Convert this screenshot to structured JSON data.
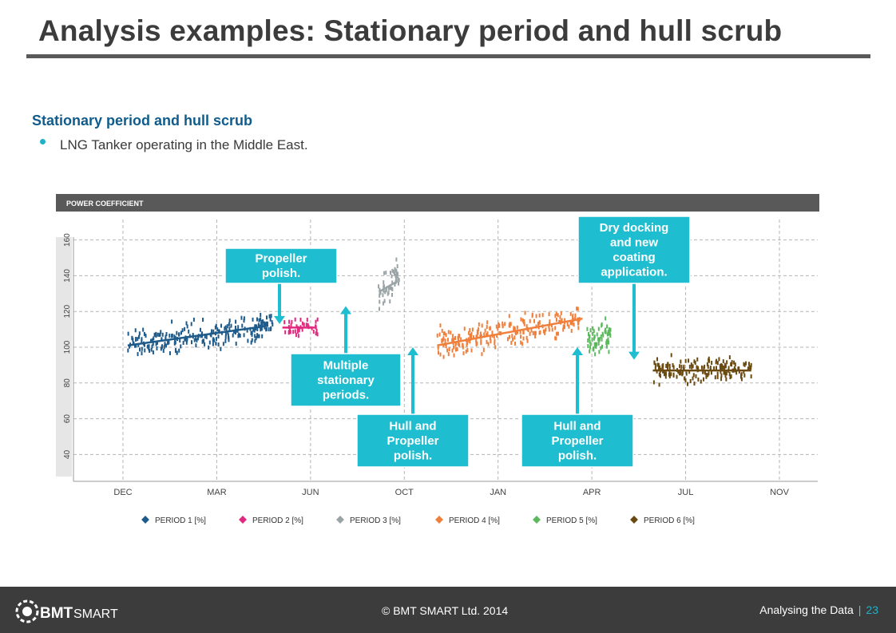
{
  "page": {
    "title": "Analysis examples: Stationary period and hull scrub",
    "section_heading": "Stationary period and hull scrub",
    "bullet": "LNG Tanker operating in the Middle East."
  },
  "footer": {
    "logo_text_bold": "BMT",
    "logo_text": "SMART",
    "copyright": "© BMT SMART Ltd. 2014",
    "section": "Analysing the Data",
    "page_number": "23"
  },
  "colors": {
    "period1": "#1f5b8a",
    "period2": "#e0287e",
    "period3": "#9aa3a6",
    "period4": "#f07f3c",
    "period5": "#5cb85c",
    "period6": "#6b4a12",
    "callout": "#1ebdcf",
    "header_bar": "#595959"
  },
  "chart_data": {
    "type": "scatter",
    "title": "POWER COEFFICIENT",
    "x_tick_labels": [
      "DEC",
      "MAR",
      "JUN",
      "OCT",
      "JAN",
      "APR",
      "JUL",
      "NOV"
    ],
    "xlim": [
      0,
      7
    ],
    "y_ticks": [
      40,
      60,
      80,
      100,
      120,
      140,
      160
    ],
    "ylim": [
      25,
      175
    ],
    "grid": true,
    "legend_position": "bottom",
    "series": [
      {
        "name": "PERIOD 1 [%]",
        "color": "#1f5b8a",
        "x_range": [
          0.05,
          1.6
        ],
        "y_center": 106,
        "spread": 6,
        "trend": [
          [
            0.05,
            101
          ],
          [
            1.55,
            112
          ]
        ],
        "n": 240
      },
      {
        "name": "PERIOD 2 [%]",
        "color": "#e0287e",
        "x_range": [
          1.68,
          2.08
        ],
        "y_center": 111,
        "spread": 3,
        "trend": [
          [
            1.7,
            111
          ],
          [
            2.05,
            111
          ]
        ],
        "n": 40
      },
      {
        "name": "PERIOD 3 [%]",
        "color": "#9aa3a6",
        "x_range": [
          2.72,
          2.95
        ],
        "y_center": 133,
        "spread": 8,
        "trend": [
          [
            2.73,
            131
          ],
          [
            2.93,
            137
          ]
        ],
        "n": 50
      },
      {
        "name": "PERIOD 4 [%]",
        "color": "#f07f3c",
        "x_range": [
          3.35,
          4.9
        ],
        "y_center": 106,
        "spread": 6,
        "trend": [
          [
            3.35,
            101
          ],
          [
            4.9,
            116
          ]
        ],
        "n": 230
      },
      {
        "name": "PERIOD 5 [%]",
        "color": "#5cb85c",
        "x_range": [
          4.95,
          5.2
        ],
        "y_center": 105,
        "spread": 7,
        "trend": [],
        "n": 60
      },
      {
        "name": "PERIOD 6 [%]",
        "color": "#6b4a12",
        "x_range": [
          5.65,
          6.7
        ],
        "y_center": 87,
        "spread": 5,
        "trend": [
          [
            5.65,
            87
          ],
          [
            6.7,
            87
          ]
        ],
        "n": 170
      }
    ],
    "annotations": [
      {
        "lines": [
          "Propeller",
          "polish."
        ],
        "arrow_to": [
          1.67,
          113
        ]
      },
      {
        "lines": [
          "Multiple",
          "stationary",
          "periods."
        ],
        "arrow_to": [
          2.37,
          123
        ]
      },
      {
        "lines": [
          "Hull and",
          "Propeller",
          "polish."
        ],
        "arrow_to": [
          3.1,
          100
        ]
      },
      {
        "lines": [
          "Hull and",
          "Propeller",
          "polish."
        ],
        "arrow_to": [
          4.85,
          100
        ]
      },
      {
        "lines": [
          "Dry docking",
          "and new",
          "coating",
          "application."
        ],
        "arrow_to": [
          5.4,
          93
        ]
      }
    ]
  }
}
